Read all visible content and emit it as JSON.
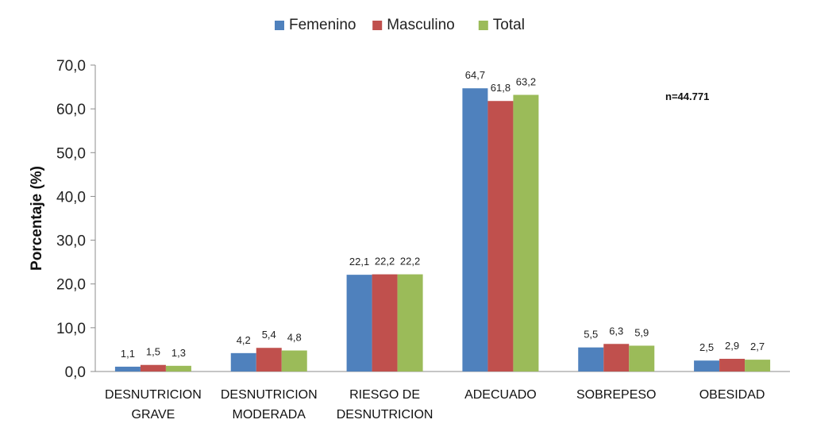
{
  "chart_data": {
    "type": "bar",
    "ylabel": "Porcentaje (%)",
    "ylim": [
      0,
      70
    ],
    "yticks": [
      "0,0",
      "10,0",
      "20,0",
      "30,0",
      "40,0",
      "50,0",
      "60,0",
      "70,0"
    ],
    "categories": [
      [
        "DESNUTRICION",
        "GRAVE"
      ],
      [
        "DESNUTRICION",
        "MODERADA"
      ],
      [
        "RIESGO DE",
        "DESNUTRICION"
      ],
      [
        "ADECUADO"
      ],
      [
        "SOBREPESO"
      ],
      [
        "OBESIDAD"
      ]
    ],
    "series": [
      {
        "name": "Femenino",
        "color": "#4F81BD",
        "values": [
          1.1,
          4.2,
          22.1,
          64.7,
          5.5,
          2.5
        ],
        "labels": [
          "1,1",
          "4,2",
          "22,1",
          "64,7",
          "5,5",
          "2,5"
        ]
      },
      {
        "name": "Masculino",
        "color": "#C0504D",
        "values": [
          1.5,
          5.4,
          22.2,
          61.8,
          6.3,
          2.9
        ],
        "labels": [
          "1,5",
          "5,4",
          "22,2",
          "61,8",
          "6,3",
          "2,9"
        ]
      },
      {
        "name": "Total",
        "color": "#9BBB59",
        "values": [
          1.3,
          4.8,
          22.2,
          63.2,
          5.9,
          2.7
        ],
        "labels": [
          "1,3",
          "4,8",
          "22,2",
          "63,2",
          "5,9",
          "2,7"
        ]
      }
    ],
    "annotation": "n=44.771",
    "legend_position": "top",
    "grid": false
  }
}
